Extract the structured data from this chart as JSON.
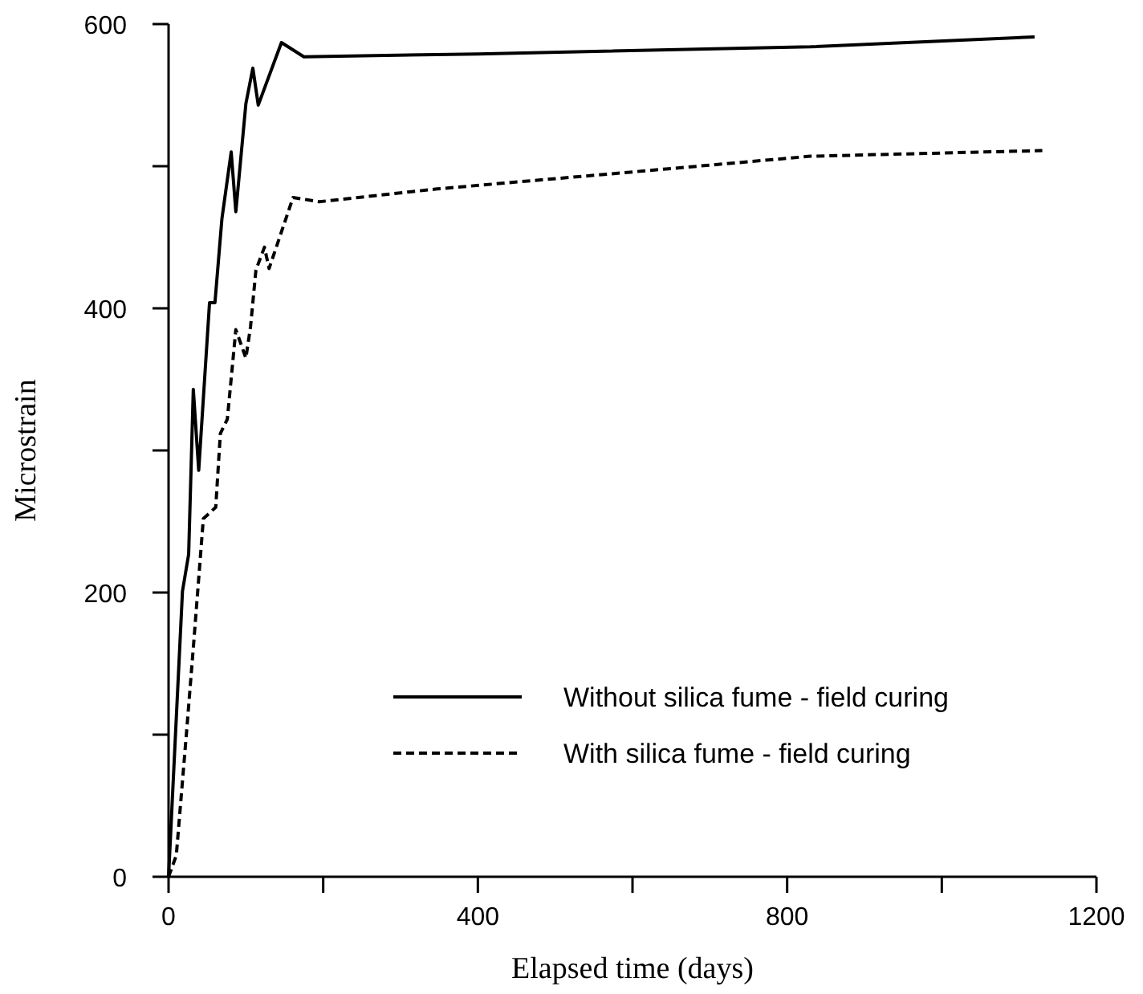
{
  "chart_data": {
    "type": "line",
    "xlabel": "Elapsed time (days)",
    "ylabel": "Microstrain",
    "xlim": [
      0,
      1200
    ],
    "ylim": [
      0,
      600
    ],
    "xticks": [
      0,
      {
        "value": 200,
        "label": null
      },
      400,
      {
        "value": 600,
        "label": null
      },
      800,
      {
        "value": 1000,
        "label": null
      },
      1200
    ],
    "yticks": [
      0,
      {
        "value": 100,
        "label": null
      },
      200,
      {
        "value": 300,
        "label": null
      },
      400,
      {
        "value": 500,
        "label": null
      },
      600
    ],
    "grid": false,
    "legend": "bottom right",
    "series": [
      {
        "name": "Without silica fume - field curing",
        "color": "#000000",
        "line_style": "solid",
        "x": [
          0,
          18,
          26,
          32,
          39,
          53,
          60,
          69,
          81,
          87,
          100,
          109,
          116,
          146,
          175,
          400,
          830,
          1120
        ],
        "values": [
          0,
          201,
          227,
          343,
          286,
          404,
          404,
          463,
          510,
          468,
          544,
          569,
          543,
          587,
          577,
          579,
          584,
          591
        ]
      },
      {
        "name": "With silica fume - field curing",
        "color": "#000000",
        "line_style": "dashed",
        "x": [
          0,
          10,
          23,
          32,
          45,
          61,
          67,
          76,
          87,
          100,
          106,
          113,
          124,
          130,
          161,
          195,
          347,
          622,
          830,
          1130
        ],
        "values": [
          0,
          15,
          100,
          161,
          252,
          260,
          312,
          322,
          385,
          365,
          387,
          427,
          443,
          428,
          478,
          475,
          484,
          497,
          507,
          511
        ]
      }
    ]
  }
}
